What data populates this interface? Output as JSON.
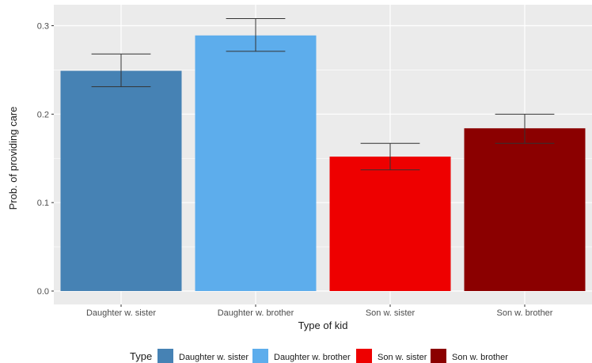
{
  "chart_data": {
    "type": "bar",
    "xlabel": "Type of kid",
    "ylabel": "Prob. of providing care",
    "ylim": [
      0,
      0.32
    ],
    "yticks": [
      0.0,
      0.1,
      0.2,
      0.3
    ],
    "ytick_labels": [
      "0.0",
      "0.1",
      "0.2",
      "0.3"
    ],
    "grid": true,
    "legend_position": "bottom",
    "legend_title": "Type",
    "categories": [
      "Daughter w. sister",
      "Daughter w. brother",
      "Son w. sister",
      "Son w. brother"
    ],
    "values": [
      0.249,
      0.289,
      0.152,
      0.184
    ],
    "error_low": [
      0.231,
      0.271,
      0.137,
      0.167
    ],
    "error_high": [
      0.268,
      0.308,
      0.167,
      0.2
    ],
    "colors": [
      "#4682B4",
      "#5DADEC",
      "#EE0000",
      "#8B0000"
    ]
  }
}
